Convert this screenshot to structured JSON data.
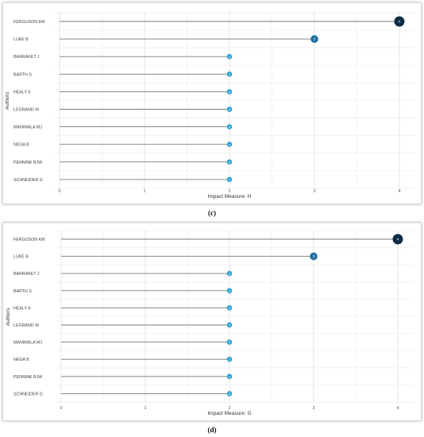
{
  "chart_data": [
    {
      "type": "lollipop",
      "orientation": "horizontal",
      "title": "",
      "xlabel": "Impact Measure: H",
      "ylabel": "Authors",
      "xlim": [
        0,
        4
      ],
      "xticks": [
        "0",
        "1",
        "2",
        "3",
        "4"
      ],
      "grid": true,
      "categories": [
        "FERGUSON KM",
        "LUKE B",
        "BARRAKET J",
        "BARTH S",
        "HEALY K",
        "LEGRAND W",
        "MANIMALA MJ",
        "NEGA B",
        "PENNINK BJW",
        "SCHNEIDER G"
      ],
      "values": [
        4,
        3,
        2,
        2,
        2,
        2,
        2,
        2,
        2,
        2
      ],
      "value_labels": [
        "4",
        "3",
        "2",
        "2",
        "2",
        "2",
        "2",
        "2",
        "2",
        "2"
      ],
      "colors": {
        "high": "#0d2b45",
        "mid": "#1f6f9f",
        "low": "#2fa4d8"
      },
      "panel_label": "(c)"
    },
    {
      "type": "lollipop",
      "orientation": "horizontal",
      "title": "",
      "xlabel": "Impact Measure: G",
      "ylabel": "Authors",
      "xlim": [
        0,
        4
      ],
      "xticks": [
        "0",
        "1",
        "2",
        "3",
        "4"
      ],
      "grid": true,
      "categories": [
        "FERGUSON KM",
        "LUKE B",
        "BARRAKET J",
        "BARTH S",
        "HEALY K",
        "LEGRAND W",
        "MANIMALA MJ",
        "NEGA B",
        "PENNINK BJW",
        "SCHNEIDER G"
      ],
      "values": [
        4,
        3,
        2,
        2,
        2,
        2,
        2,
        2,
        2,
        2
      ],
      "value_labels": [
        "4",
        "3",
        "2",
        "2",
        "2",
        "2",
        "2",
        "2",
        "2",
        "2"
      ],
      "colors": {
        "high": "#0d2b45",
        "mid": "#1f6f9f",
        "low": "#2fa4d8"
      },
      "panel_label": "(d)"
    }
  ]
}
